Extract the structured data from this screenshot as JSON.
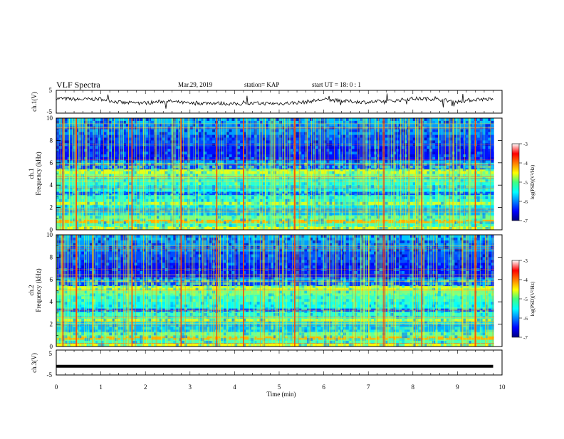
{
  "header": {
    "title": "VLF Spectra",
    "date": "Mar.29, 2019",
    "station": "station= KAP",
    "start_ut": "start  UT =   18: 0  : 1"
  },
  "chart_data": [
    {
      "type": "line",
      "panel": "ch.1(V) waveform",
      "ylabel": "ch.1(V)",
      "ylim": [
        -5,
        5
      ],
      "yticks": [
        "5",
        "-5"
      ],
      "x": [
        0,
        0.5,
        1,
        1.5,
        2,
        2.5,
        3,
        3.5,
        4,
        4.5,
        5,
        5.5,
        6,
        6.5,
        7,
        7.5,
        8,
        8.5,
        9,
        9.5,
        9.8
      ],
      "values": [
        1.5,
        1.0,
        1.2,
        -0.5,
        -0.5,
        0.3,
        -0.8,
        -0.5,
        -1.0,
        -0.7,
        -0.8,
        -0.3,
        1.0,
        0.2,
        -0.2,
        0.3,
        1.4,
        1.2,
        0.0,
        1.2,
        1.0
      ]
    },
    {
      "type": "heatmap",
      "panel": "ch.1 spectrogram",
      "ylabel_top": "ch.1",
      "ylabel": "Frequency  (kHz)",
      "ylim": [
        0,
        10
      ],
      "yticks": [
        "0",
        "2",
        "4",
        "6",
        "8",
        "10"
      ],
      "colorbar": {
        "label": "log(PSD)(V²/Hz)",
        "range": [
          -7,
          -3
        ],
        "ticks": [
          "-3",
          "-4",
          "-5",
          "-6",
          "-7"
        ]
      },
      "strong_impulses_min": [
        0.15,
        0.45,
        1.7,
        2.8,
        3.6,
        4.2,
        5.35,
        7.35,
        8.2,
        9.4
      ]
    },
    {
      "type": "heatmap",
      "panel": "ch.2 spectrogram",
      "ylabel_top": "ch.2",
      "ylabel": "Frequency  (kHz)",
      "ylim": [
        0,
        10
      ],
      "yticks": [
        "0",
        "2",
        "4",
        "6",
        "8",
        "10"
      ],
      "colorbar": {
        "label": "log(PSD)(V²/Hz)",
        "range": [
          -7,
          -3
        ],
        "ticks": [
          "-3",
          "-4",
          "-5",
          "-6",
          "-7"
        ]
      },
      "strong_impulses_min": [
        0.15,
        0.45,
        1.7,
        2.8,
        3.6,
        4.2,
        5.35,
        7.35,
        8.2,
        9.4
      ]
    },
    {
      "type": "line",
      "panel": "ch.3(V) waveform",
      "ylabel": "ch.3(V)",
      "ylim": [
        -5,
        5
      ],
      "yticks": [
        "5",
        "-5"
      ],
      "x": [
        0,
        9.8
      ],
      "values": [
        -1.5,
        -1.5
      ]
    }
  ],
  "xaxis": {
    "label": "Time  (min)",
    "range": [
      0,
      10
    ],
    "ticks": [
      "0",
      "1",
      "2",
      "3",
      "4",
      "5",
      "6",
      "7",
      "8",
      "9",
      "10"
    ]
  }
}
